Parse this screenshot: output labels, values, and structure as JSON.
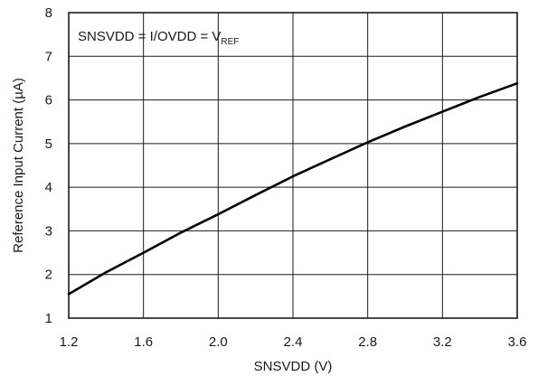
{
  "chart_data": {
    "type": "line",
    "xlabel": "SNSVDD (V)",
    "ylabel": "Reference Input Current (µA)",
    "xlim": [
      1.2,
      3.6
    ],
    "ylim": [
      1,
      8
    ],
    "x_ticks": [
      "1.2",
      "1.6",
      "2.0",
      "2.4",
      "2.8",
      "3.2",
      "3.6"
    ],
    "y_ticks": [
      "1",
      "2",
      "3",
      "4",
      "5",
      "6",
      "7",
      "8"
    ],
    "grid": true,
    "annotation": {
      "text": "SNSVDD = I/OVDD = V",
      "subscript": "REF",
      "position": "top-left"
    },
    "series": [
      {
        "x": [
          1.2,
          1.4,
          1.6,
          1.8,
          2.0,
          2.2,
          2.4,
          2.6,
          2.8,
          3.0,
          3.2,
          3.4,
          3.6
        ],
        "y": [
          1.55,
          2.05,
          2.5,
          2.96,
          3.38,
          3.82,
          4.25,
          4.64,
          5.03,
          5.39,
          5.73,
          6.07,
          6.38
        ]
      }
    ],
    "colors": {
      "line": "#000000",
      "grid": "#1a1a1a"
    }
  }
}
